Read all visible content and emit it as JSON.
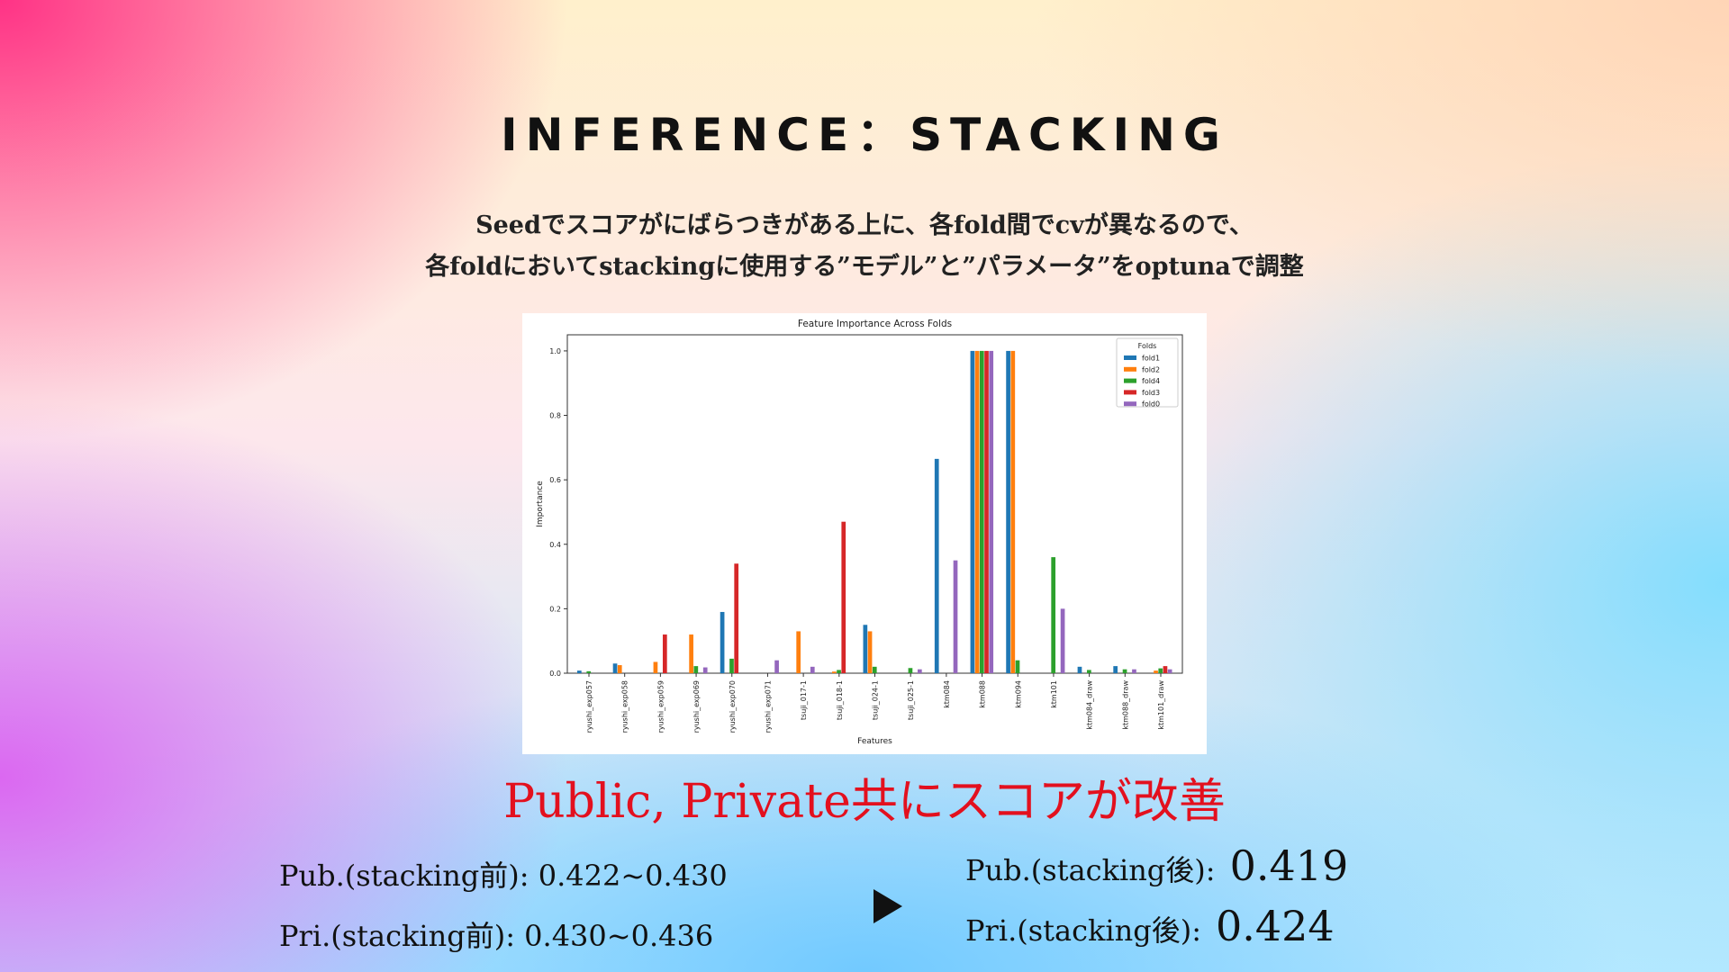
{
  "slide": {
    "title": "INFERENCE：STACKING",
    "subtitle_line1": "Seedでスコアがにばらつきがある上に、各fold間でcvが異なるので、",
    "subtitle_line2": "各foldにおいてstackingに使用する”モデル”と”パラメータ”をoptunaで調整",
    "headline": "Public, Private共にスコアが改善",
    "before": {
      "pub_label": "Pub.(stacking前): 0.422~0.430",
      "pri_label": "Pri.(stacking前): 0.430~0.436"
    },
    "after": {
      "pub_label": "Pub.(stacking後):",
      "pub_value": "0.419",
      "pri_label": "Pri.(stacking後):",
      "pri_value": "0.424"
    },
    "arrow_icon": "play-triangle-icon"
  },
  "chart_data": {
    "type": "bar",
    "title": "Feature Importance Across Folds",
    "xlabel": "Features",
    "ylabel": "Importance",
    "ylim": [
      0,
      1.05
    ],
    "yticks": [
      "0.0",
      "0.2",
      "0.4",
      "0.6",
      "0.8",
      "1.0"
    ],
    "grid": false,
    "legend": {
      "title": "Folds",
      "placement": "top-right",
      "order": [
        "fold1",
        "fold2",
        "fold4",
        "fold3",
        "fold0"
      ]
    },
    "categories": [
      "ryushi_exp057",
      "ryushi_exp058",
      "ryushi_exp059",
      "ryushi_exp069",
      "ryushi_exp070",
      "ryushi_exp071",
      "tsuji_017-1",
      "tsuji_018-1",
      "tsuji_024-1",
      "tsuji_025-1",
      "ktm084",
      "ktm088",
      "ktm094",
      "ktm101",
      "ktm084_draw",
      "ktm088_draw",
      "ktm101_draw"
    ],
    "series": [
      {
        "name": "fold1",
        "color": "#1f77b4",
        "values": [
          0.008,
          0.03,
          0,
          0,
          0.19,
          0,
          0,
          0,
          0.15,
          0,
          0.665,
          1.0,
          1.0,
          0,
          0.02,
          0.022,
          0
        ]
      },
      {
        "name": "fold2",
        "color": "#ff7f0e",
        "values": [
          0,
          0.025,
          0.035,
          0.12,
          0,
          0,
          0.13,
          0.005,
          0.13,
          0,
          0,
          1.0,
          1.0,
          0,
          0,
          0,
          0.008
        ]
      },
      {
        "name": "fold4",
        "color": "#2ca02c",
        "values": [
          0.006,
          0,
          0,
          0.022,
          0.045,
          0,
          0,
          0.01,
          0.02,
          0.016,
          0,
          1.0,
          0.04,
          0.36,
          0.01,
          0.012,
          0.015
        ]
      },
      {
        "name": "fold3",
        "color": "#d62728",
        "values": [
          0,
          0,
          0.12,
          0,
          0.34,
          0,
          0,
          0.47,
          0,
          0,
          0,
          1.0,
          0,
          0,
          0,
          0,
          0.022
        ]
      },
      {
        "name": "fold0",
        "color": "#9467bd",
        "values": [
          0,
          0,
          0,
          0.018,
          0,
          0.04,
          0.02,
          0,
          0,
          0.012,
          0.35,
          1.0,
          0,
          0.2,
          0,
          0.012,
          0.012
        ]
      }
    ]
  }
}
